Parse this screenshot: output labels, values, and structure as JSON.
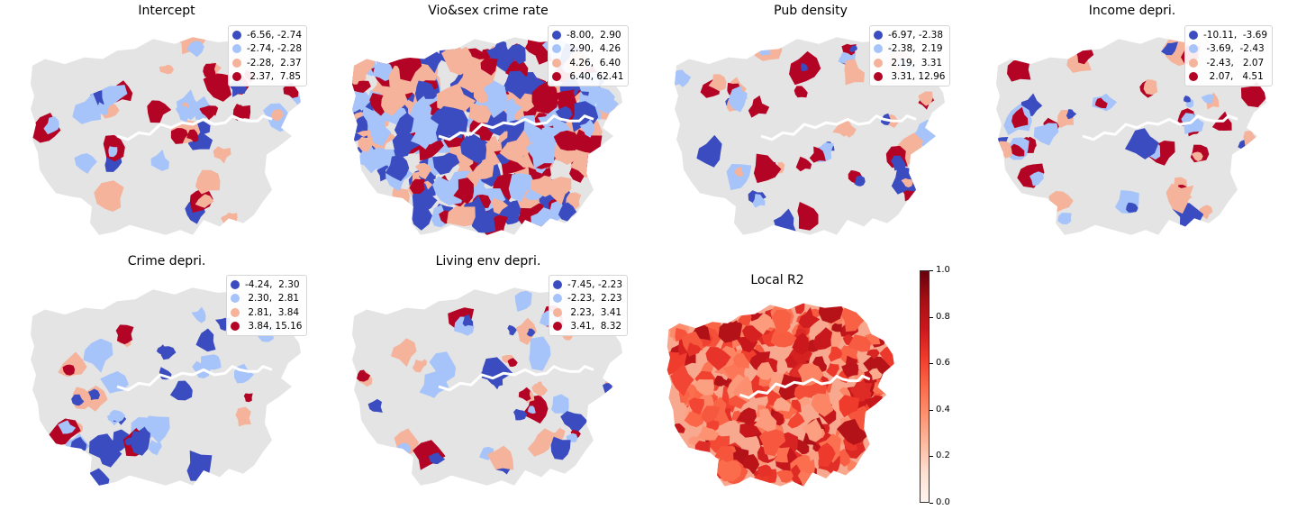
{
  "colors": {
    "base": "#e4e4e4",
    "river": "#ffffff",
    "classes": [
      "#3b4cc0",
      "#a6c4fa",
      "#f4b39a",
      "#b40426"
    ]
  },
  "panels": [
    {
      "title": "Intercept",
      "legend": [
        "-6.56, -2.74",
        "-2.74, -2.28",
        "-2.28,  2.37",
        " 2.37,  7.85"
      ]
    },
    {
      "title": "Vio&sex crime rate",
      "legend": [
        "-8.00,  2.90",
        " 2.90,  4.26",
        " 4.26,  6.40",
        " 6.40, 62.41"
      ]
    },
    {
      "title": "Pub density",
      "legend": [
        "-6.97, -2.38",
        "-2.38,  2.19",
        " 2.19,  3.31",
        " 3.31, 12.96"
      ]
    },
    {
      "title": "Income depri.",
      "legend": [
        "-10.11,  -3.69",
        " -3.69,  -2.43",
        " -2.43,   2.07",
        "  2.07,   4.51"
      ]
    },
    {
      "title": "Crime depri.",
      "legend": [
        "-4.24,  2.30",
        " 2.30,  2.81",
        " 2.81,  3.84",
        " 3.84, 15.16"
      ]
    },
    {
      "title": "Living env depri.",
      "legend": [
        "-7.45, -2.23",
        "-2.23,  2.23",
        " 2.23,  3.41",
        " 3.41,  8.32"
      ]
    },
    {
      "title": "Local R2",
      "colorbar": {
        "min": 0.0,
        "max": 1.0,
        "ticks": [
          "0.0",
          "0.2",
          "0.4",
          "0.6",
          "0.8",
          "1.0"
        ],
        "colormap": "Reds"
      }
    }
  ]
}
